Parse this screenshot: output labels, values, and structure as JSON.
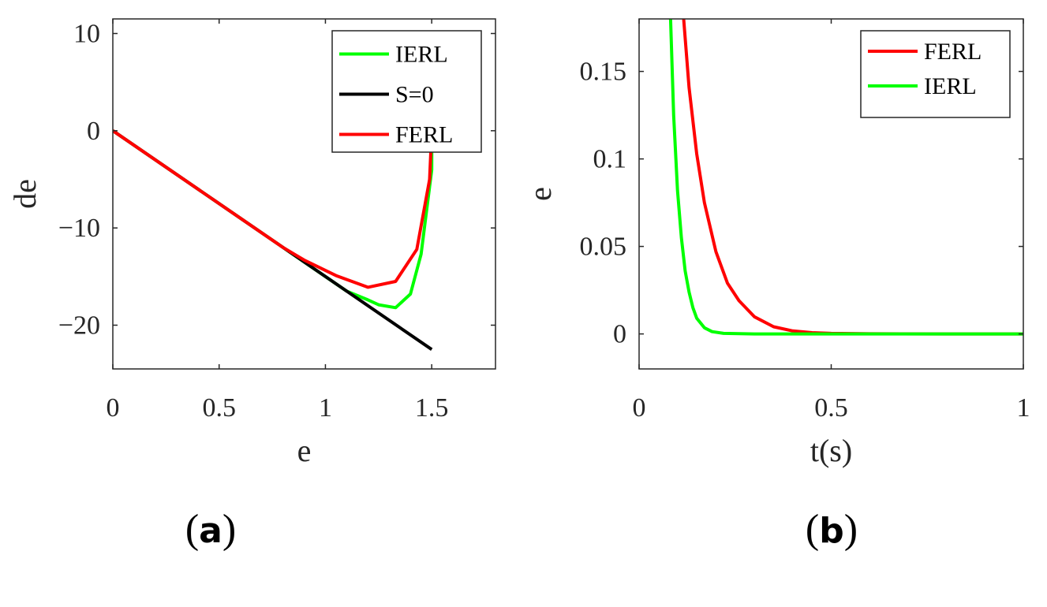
{
  "chart_data": [
    {
      "type": "line",
      "panel": "a",
      "xlabel": "e",
      "ylabel": "de",
      "xlim": [
        0,
        1.8
      ],
      "ylim": [
        -24.5,
        11.5
      ],
      "xticks": [
        0,
        0.5,
        1,
        1.5
      ],
      "xtick_labels": [
        "0",
        "0.5",
        "1",
        "1.5"
      ],
      "yticks": [
        10,
        0,
        -10,
        -20
      ],
      "ytick_labels": [
        "10",
        "0",
        "−10",
        "−20"
      ],
      "legend_position": "top-right",
      "series": [
        {
          "name": "IERL",
          "color": "#00ff00",
          "x": [
            0,
            0.2,
            0.4,
            0.6,
            0.8,
            0.9,
            1.0,
            1.1,
            1.2,
            1.25,
            1.33,
            1.4,
            1.45,
            1.48,
            1.5,
            1.5
          ],
          "y": [
            0,
            -3.0,
            -6.0,
            -9.0,
            -12.0,
            -13.5,
            -15.0,
            -16.5,
            -17.4,
            -17.9,
            -18.2,
            -16.8,
            -12.7,
            -7.5,
            -4.0,
            0
          ]
        },
        {
          "name": "S=0",
          "color": "#000000",
          "x": [
            0,
            1.5
          ],
          "y": [
            0,
            -22.5
          ]
        },
        {
          "name": "FERL",
          "color": "#ff0000",
          "x": [
            0,
            0.2,
            0.4,
            0.6,
            0.8,
            0.9,
            1.05,
            1.2,
            1.33,
            1.43,
            1.49,
            1.5
          ],
          "y": [
            0,
            -3.0,
            -6.0,
            -9.0,
            -12.0,
            -13.3,
            -14.9,
            -16.1,
            -15.5,
            -12.2,
            -5.0,
            0
          ]
        }
      ]
    },
    {
      "type": "line",
      "panel": "b",
      "xlabel": "t(s)",
      "ylabel": "e",
      "xlim": [
        0,
        1
      ],
      "ylim": [
        -0.02,
        0.18
      ],
      "xticks": [
        0,
        0.5,
        1
      ],
      "xtick_labels": [
        "0",
        "0.5",
        "1"
      ],
      "yticks": [
        0.15,
        0.1,
        0.05,
        0
      ],
      "ytick_labels": [
        "0.15",
        "0.1",
        "0.05",
        "0"
      ],
      "legend_position": "top-right",
      "series": [
        {
          "name": "FERL",
          "color": "#ff0000",
          "x": [
            0.116,
            0.13,
            0.15,
            0.17,
            0.2,
            0.23,
            0.26,
            0.3,
            0.35,
            0.4,
            0.45,
            0.5,
            0.6,
            0.8,
            1.0
          ],
          "y": [
            0.18,
            0.141,
            0.103,
            0.075,
            0.047,
            0.029,
            0.019,
            0.0098,
            0.0041,
            0.0017,
            0.0007,
            0.0003,
            0.0001,
            0,
            0
          ]
        },
        {
          "name": "IERL",
          "color": "#00ff00",
          "x": [
            0.082,
            0.09,
            0.1,
            0.11,
            0.12,
            0.13,
            0.14,
            0.15,
            0.17,
            0.19,
            0.22,
            0.3,
            0.5,
            1.0
          ],
          "y": [
            0.18,
            0.125,
            0.082,
            0.055,
            0.036,
            0.024,
            0.015,
            0.009,
            0.0035,
            0.0013,
            0.0003,
            0,
            0,
            0
          ]
        }
      ]
    }
  ],
  "panel_labels": {
    "a_open": "(",
    "a_letter": "a",
    "a_close": ")",
    "b_open": "(",
    "b_letter": "b",
    "b_close": ")"
  }
}
